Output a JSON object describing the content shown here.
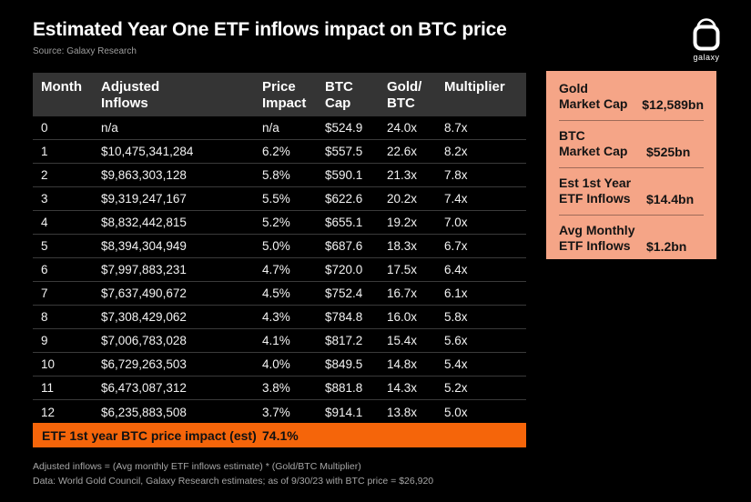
{
  "colors": {
    "background": "#000000",
    "table_header_bg": "#343434",
    "accent_orange": "#F5650A",
    "sidebar_salmon": "#F5A587",
    "text_light": "#F2F2F2",
    "text_muted": "#A6A6A6",
    "divider": "#3A3A3A"
  },
  "header": {
    "title": "Estimated Year One ETF inflows impact on BTC price",
    "source": "Source: Galaxy Research",
    "logo_text": "galaxy"
  },
  "chart_data": {
    "type": "table",
    "title": "Estimated Year One ETF inflows impact on BTC price",
    "subtitle": "Source: Galaxy Research",
    "columns": [
      "Month",
      "Adjusted\nInflows",
      "Price\nImpact",
      "BTC\nCap",
      "Gold/\nBTC",
      "Multiplier"
    ],
    "rows": [
      [
        "0",
        "n/a",
        "n/a",
        "$524.9",
        "24.0x",
        "8.7x"
      ],
      [
        "1",
        "$10,475,341,284",
        "6.2%",
        "$557.5",
        "22.6x",
        "8.2x"
      ],
      [
        "2",
        "$9,863,303,128",
        "5.8%",
        "$590.1",
        "21.3x",
        "7.8x"
      ],
      [
        "3",
        "$9,319,247,167",
        "5.5%",
        "$622.6",
        "20.2x",
        "7.4x"
      ],
      [
        "4",
        "$8,832,442,815",
        "5.2%",
        "$655.1",
        "19.2x",
        "7.0x"
      ],
      [
        "5",
        "$8,394,304,949",
        "5.0%",
        "$687.6",
        "18.3x",
        "6.7x"
      ],
      [
        "6",
        "$7,997,883,231",
        "4.7%",
        "$720.0",
        "17.5x",
        "6.4x"
      ],
      [
        "7",
        "$7,637,490,672",
        "4.5%",
        "$752.4",
        "16.7x",
        "6.1x"
      ],
      [
        "8",
        "$7,308,429,062",
        "4.3%",
        "$784.8",
        "16.0x",
        "5.8x"
      ],
      [
        "9",
        "$7,006,783,028",
        "4.1%",
        "$817.2",
        "15.4x",
        "5.6x"
      ],
      [
        "10",
        "$6,729,263,503",
        "4.0%",
        "$849.5",
        "14.8x",
        "5.4x"
      ],
      [
        "11",
        "$6,473,087,312",
        "3.8%",
        "$881.8",
        "14.3x",
        "5.2x"
      ],
      [
        "12",
        "$6,235,883,508",
        "3.7%",
        "$914.1",
        "13.8x",
        "5.0x"
      ]
    ],
    "summary": {
      "label": "ETF 1st year BTC price impact (est)",
      "value": "74.1%"
    },
    "side_stats": [
      {
        "label": "Gold\nMarket Cap",
        "value": "$12,589bn"
      },
      {
        "label": "BTC\nMarket Cap",
        "value": "$525bn"
      },
      {
        "label": "Est 1st Year\nETF Inflows",
        "value": "$14.4bn"
      },
      {
        "label": "Avg Monthly\nETF Inflows",
        "value": "$1.2bn"
      }
    ],
    "footnotes": [
      "Adjusted inflows = (Avg monthly ETF inflows estimate) * (Gold/BTC Multiplier)",
      "Data: World Gold Council, Galaxy Research estimates; as of 9/30/23 with BTC price = $26,920"
    ]
  }
}
